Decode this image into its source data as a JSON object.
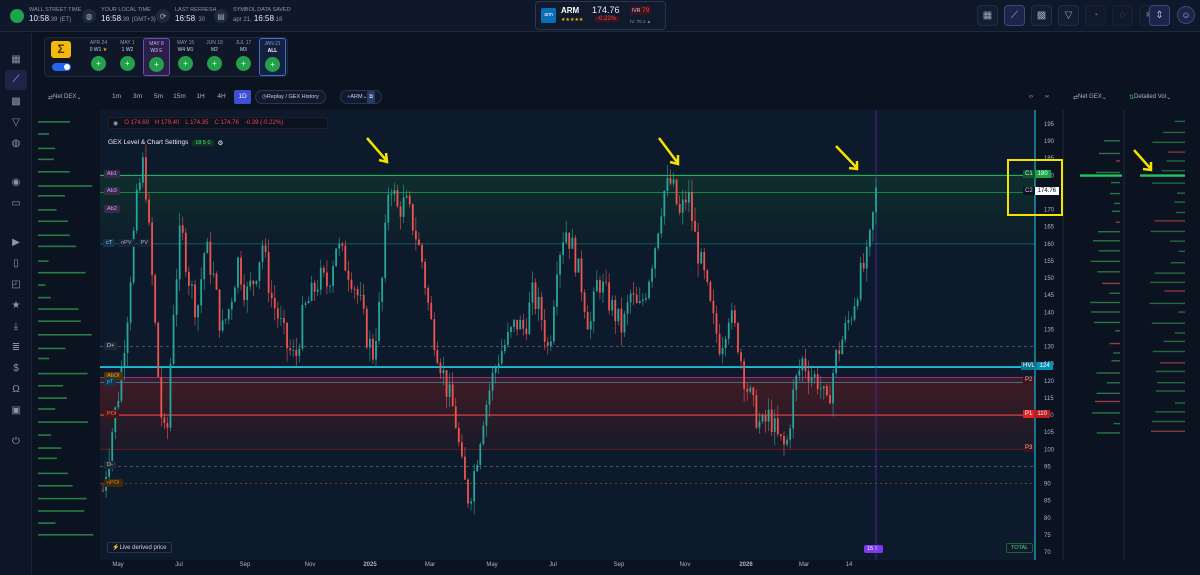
{
  "header": {
    "clocks": [
      {
        "label": "WALL STREET TIME",
        "time": "10:58",
        "sec": ":39",
        "tz": "(ET)"
      },
      {
        "label": "YOUR LOCAL TIME",
        "time": "16:58",
        "sec": ":39",
        "tz": "(GMT+3)"
      },
      {
        "label": "LAST REFRESH",
        "time": "16:58",
        "sec": ": 30",
        "tz": ""
      },
      {
        "label": "SYMBOL DATA SAVED",
        "time": "16:58",
        "sec": ":18",
        "tz": "",
        "date": "apr 21,"
      }
    ],
    "ticker": {
      "logo": "arm",
      "symbol": "ARM",
      "price": "174.76",
      "stars": "★★★★★",
      "change": "-0.22%",
      "ivr_label": "IVR",
      "ivr": "79",
      "iv_text": "IV: 70.1"
    }
  },
  "expiry": {
    "items": [
      {
        "date": "APR 24",
        "week": "0  W1",
        "badge": "★"
      },
      {
        "date": "MAY 1",
        "week": "1  W2",
        "badge": ""
      },
      {
        "date": "MAY 8",
        "week": "W3",
        "badge": "E"
      },
      {
        "date": "MAY 15",
        "week": "W4  M1",
        "badge": ""
      },
      {
        "date": "JUN 18",
        "week": "M2",
        "badge": ""
      },
      {
        "date": "JUL 17",
        "week": "M3",
        "badge": ""
      },
      {
        "date": "JAN 21",
        "week": "ALL",
        "badge": ""
      }
    ]
  },
  "toolbar": {
    "net_dex": "Net DEX",
    "timeframes": [
      "1m",
      "3m",
      "5m",
      "15m",
      "1H",
      "4H",
      "1D"
    ],
    "replay": "Replay / GEX History",
    "symbol": "ARM",
    "net_gex": "Net GEX",
    "detailed_vol": "Detailed Vol"
  },
  "ohlc": {
    "o": "O 174.69",
    "h": "H 179.40",
    "l": "L 174.35",
    "c": "C 174.76",
    "chg": "-0.39 (-0.22%)"
  },
  "chart_settings": {
    "label": "GEX Level & Chart Settings",
    "n1": "18",
    "n2": "5",
    "n3": "0"
  },
  "legend": {
    "items": [
      "cT",
      "nPV",
      "PV"
    ]
  },
  "footer": {
    "live_price": "Live derived price",
    "total": "TOTAL",
    "badge15": "15"
  },
  "levels": {
    "left": [
      {
        "label": "Ab1",
        "price": 180
      },
      {
        "label": "Ab3",
        "price": 175
      },
      {
        "label": "Ab2",
        "price": 170
      },
      {
        "label": "D+",
        "price": 130
      },
      {
        "label": "AbOI",
        "price": 121
      },
      {
        "label": "pT",
        "price": 119.5
      },
      {
        "label": "POI",
        "price": 110
      },
      {
        "label": "D-",
        "price": 95
      },
      {
        "label": "nPOI",
        "price": 90
      }
    ],
    "right": [
      {
        "label": "C1",
        "value": "180",
        "price": 180
      },
      {
        "label": "C2",
        "value": "174.76",
        "price": 175
      },
      {
        "label": "HVL",
        "value": "124",
        "price": 124
      },
      {
        "label": "P2",
        "value": "",
        "price": 120
      },
      {
        "label": "P1",
        "value": "110",
        "price": 110
      },
      {
        "label": "P3",
        "value": "",
        "price": 100
      }
    ]
  },
  "chart_data": {
    "type": "candlestick",
    "x_ticks": [
      "May",
      "Jul",
      "Sep",
      "Nov",
      "2025",
      "Mar",
      "May",
      "Jul",
      "Sep",
      "Nov",
      "2026",
      "Mar",
      "14"
    ],
    "y_ticks": [
      195,
      190,
      185,
      180,
      175,
      170,
      165,
      160,
      155,
      150,
      145,
      140,
      135,
      130,
      125,
      120,
      115,
      110,
      105,
      100,
      95,
      90,
      85,
      80,
      75,
      70
    ],
    "ylim": [
      70,
      195
    ],
    "close_path": [
      [
        0,
        88
      ],
      [
        8,
        104
      ],
      [
        16,
        118
      ],
      [
        24,
        140
      ],
      [
        32,
        170
      ],
      [
        40,
        185
      ],
      [
        48,
        150
      ],
      [
        56,
        112
      ],
      [
        62,
        100
      ],
      [
        68,
        138
      ],
      [
        76,
        165
      ],
      [
        84,
        150
      ],
      [
        92,
        140
      ],
      [
        100,
        160
      ],
      [
        108,
        150
      ],
      [
        116,
        134
      ],
      [
        124,
        142
      ],
      [
        132,
        155
      ],
      [
        140,
        145
      ],
      [
        148,
        150
      ],
      [
        156,
        160
      ],
      [
        164,
        145
      ],
      [
        172,
        138
      ],
      [
        180,
        130
      ],
      [
        188,
        126
      ],
      [
        196,
        140
      ],
      [
        204,
        145
      ],
      [
        212,
        150
      ],
      [
        220,
        148
      ],
      [
        228,
        160
      ],
      [
        236,
        155
      ],
      [
        244,
        150
      ],
      [
        252,
        142
      ],
      [
        258,
        133
      ],
      [
        264,
        128
      ],
      [
        272,
        145
      ],
      [
        280,
        180
      ],
      [
        288,
        170
      ],
      [
        296,
        172
      ],
      [
        304,
        165
      ],
      [
        312,
        155
      ],
      [
        320,
        138
      ],
      [
        328,
        128
      ],
      [
        336,
        118
      ],
      [
        344,
        110
      ],
      [
        352,
        92
      ],
      [
        358,
        85
      ],
      [
        364,
        95
      ],
      [
        372,
        110
      ],
      [
        380,
        120
      ],
      [
        388,
        128
      ],
      [
        396,
        132
      ],
      [
        404,
        137
      ],
      [
        412,
        135
      ],
      [
        420,
        145
      ],
      [
        428,
        140
      ],
      [
        436,
        128
      ],
      [
        444,
        155
      ],
      [
        452,
        165
      ],
      [
        460,
        158
      ],
      [
        468,
        148
      ],
      [
        476,
        135
      ],
      [
        484,
        150
      ],
      [
        492,
        145
      ],
      [
        500,
        140
      ],
      [
        508,
        135
      ],
      [
        516,
        145
      ],
      [
        524,
        140
      ],
      [
        532,
        148
      ],
      [
        540,
        160
      ],
      [
        548,
        175
      ],
      [
        556,
        178
      ],
      [
        564,
        168
      ],
      [
        572,
        175
      ],
      [
        580,
        160
      ],
      [
        588,
        150
      ],
      [
        596,
        138
      ],
      [
        604,
        130
      ],
      [
        612,
        140
      ],
      [
        620,
        133
      ],
      [
        628,
        120
      ],
      [
        636,
        112
      ],
      [
        644,
        106
      ],
      [
        652,
        110
      ],
      [
        660,
        103
      ],
      [
        668,
        100
      ],
      [
        676,
        118
      ],
      [
        684,
        126
      ],
      [
        692,
        122
      ],
      [
        700,
        120
      ],
      [
        708,
        112
      ],
      [
        716,
        126
      ],
      [
        724,
        133
      ],
      [
        732,
        140
      ],
      [
        740,
        150
      ],
      [
        748,
        156
      ],
      [
        756,
        175
      ]
    ]
  }
}
